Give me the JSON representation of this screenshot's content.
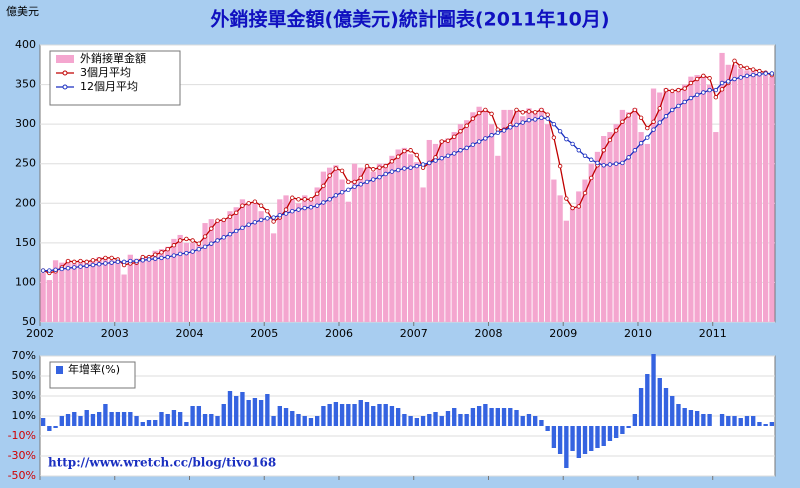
{
  "chart_data": [
    {
      "type": "bar",
      "title": "外銷接單金額(億美元)統計圖表(2011年10月)",
      "y_label": "億美元",
      "categories": [
        "2002",
        null,
        null,
        null,
        null,
        null,
        null,
        null,
        null,
        null,
        null,
        null,
        "2003",
        null,
        null,
        null,
        null,
        null,
        null,
        null,
        null,
        null,
        null,
        null,
        "2004",
        null,
        null,
        null,
        null,
        null,
        null,
        null,
        null,
        null,
        null,
        null,
        "2005",
        null,
        null,
        null,
        null,
        null,
        null,
        null,
        null,
        null,
        null,
        null,
        "2006",
        null,
        null,
        null,
        null,
        null,
        null,
        null,
        null,
        null,
        null,
        null,
        "2007",
        null,
        null,
        null,
        null,
        null,
        null,
        null,
        null,
        null,
        null,
        null,
        "2008",
        null,
        null,
        null,
        null,
        null,
        null,
        null,
        null,
        null,
        null,
        null,
        "2009",
        null,
        null,
        null,
        null,
        null,
        null,
        null,
        null,
        null,
        null,
        null,
        "2010",
        null,
        null,
        null,
        null,
        null,
        null,
        null,
        null,
        null,
        null,
        null,
        "2011",
        null,
        null,
        null,
        null,
        null,
        null,
        null,
        null,
        null
      ],
      "series": [
        {
          "name": "外銷接單金額",
          "type": "bar",
          "color": "#f4a6cf",
          "values": [
            112,
            103,
            128,
            125,
            128,
            124,
            128,
            127,
            129,
            132,
            132,
            128,
            128,
            110,
            135,
            130,
            132,
            133,
            140,
            142,
            145,
            155,
            160,
            150,
            150,
            148,
            175,
            180,
            178,
            180,
            190,
            195,
            205,
            200,
            200,
            190,
            180,
            162,
            205,
            210,
            205,
            200,
            210,
            205,
            220,
            240,
            245,
            248,
            230,
            202,
            250,
            245,
            245,
            240,
            250,
            250,
            260,
            268,
            270,
            262,
            252,
            220,
            280,
            275,
            280,
            282,
            290,
            300,
            305,
            315,
            322,
            318,
            300,
            260,
            318,
            318,
            318,
            310,
            320,
            315,
            320,
            300,
            230,
            210,
            178,
            195,
            215,
            230,
            250,
            265,
            285,
            290,
            300,
            318,
            315,
            320,
            290,
            275,
            345,
            340,
            345,
            340,
            345,
            350,
            360,
            362,
            362,
            350,
            290,
            390,
            375,
            375,
            370,
            368,
            368,
            365,
            362,
            360
          ]
        },
        {
          "name": "3個月平均",
          "type": "line",
          "color": "#c00000",
          "values": [
            115,
            112,
            114,
            119,
            127,
            126,
            127,
            126,
            128,
            129,
            131,
            131,
            129,
            122,
            124,
            125,
            132,
            132,
            135,
            138,
            142,
            147,
            153,
            155,
            153,
            149,
            158,
            168,
            178,
            179,
            183,
            188,
            197,
            200,
            202,
            197,
            190,
            177,
            182,
            192,
            207,
            205,
            205,
            205,
            212,
            222,
            235,
            244,
            241,
            227,
            227,
            232,
            247,
            243,
            245,
            247,
            253,
            259,
            266,
            267,
            261,
            245,
            251,
            258,
            278,
            279,
            284,
            291,
            298,
            307,
            314,
            318,
            313,
            293,
            293,
            299,
            318,
            315,
            316,
            315,
            318,
            312,
            283,
            247,
            206,
            194,
            196,
            213,
            232,
            248,
            267,
            280,
            292,
            303,
            311,
            318,
            308,
            295,
            303,
            320,
            343,
            342,
            343,
            345,
            352,
            357,
            361,
            358,
            334,
            344,
            352,
            380,
            373,
            371,
            369,
            367,
            365,
            362
          ]
        },
        {
          "name": "12個月平均",
          "type": "line",
          "color": "#1a2fc0",
          "values": [
            115,
            115,
            116,
            117,
            118,
            119,
            120,
            121,
            122,
            123,
            124,
            125,
            126,
            126,
            127,
            127,
            128,
            129,
            130,
            131,
            132,
            134,
            136,
            137,
            139,
            142,
            145,
            149,
            153,
            157,
            161,
            165,
            169,
            173,
            176,
            179,
            181,
            182,
            185,
            187,
            190,
            192,
            194,
            195,
            197,
            201,
            205,
            210,
            214,
            217,
            221,
            224,
            227,
            230,
            233,
            237,
            240,
            242,
            244,
            245,
            247,
            249,
            251,
            254,
            257,
            260,
            263,
            267,
            270,
            274,
            278,
            282,
            286,
            289,
            292,
            296,
            299,
            302,
            305,
            306,
            308,
            307,
            300,
            291,
            281,
            275,
            267,
            260,
            255,
            251,
            248,
            249,
            250,
            251,
            258,
            267,
            276,
            283,
            293,
            302,
            310,
            318,
            323,
            328,
            333,
            337,
            340,
            343,
            343,
            352,
            354,
            357,
            359,
            361,
            362,
            363,
            364,
            364
          ]
        }
      ],
      "ylim": [
        50,
        400
      ],
      "yticks": [
        50,
        100,
        150,
        200,
        250,
        300,
        350,
        400
      ],
      "grid": true,
      "legend": "upper left"
    },
    {
      "type": "bar",
      "categories": [
        "2002",
        null,
        null,
        null,
        null,
        null,
        null,
        null,
        null,
        null,
        null,
        null,
        "2003",
        null,
        null,
        null,
        null,
        null,
        null,
        null,
        null,
        null,
        null,
        null,
        "2004",
        null,
        null,
        null,
        null,
        null,
        null,
        null,
        null,
        null,
        null,
        null,
        "2005",
        null,
        null,
        null,
        null,
        null,
        null,
        null,
        null,
        null,
        null,
        null,
        "2006",
        null,
        null,
        null,
        null,
        null,
        null,
        null,
        null,
        null,
        null,
        null,
        "2007",
        null,
        null,
        null,
        null,
        null,
        null,
        null,
        null,
        null,
        null,
        null,
        "2008",
        null,
        null,
        null,
        null,
        null,
        null,
        null,
        null,
        null,
        null,
        null,
        "2009",
        null,
        null,
        null,
        null,
        null,
        null,
        null,
        null,
        null,
        null,
        null,
        "2010",
        null,
        null,
        null,
        null,
        null,
        null,
        null,
        null,
        null,
        null,
        null,
        "2011",
        null,
        null,
        null,
        null,
        null,
        null,
        null,
        null,
        null
      ],
      "series": [
        {
          "name": "年增率(%)",
          "type": "bar",
          "color": "#3563e0",
          "values": [
            8,
            -5,
            -2,
            10,
            12,
            14,
            10,
            16,
            12,
            14,
            22,
            14,
            14,
            14,
            14,
            10,
            4,
            6,
            6,
            14,
            12,
            16,
            14,
            4,
            20,
            20,
            12,
            12,
            10,
            22,
            35,
            30,
            34,
            26,
            28,
            26,
            32,
            10,
            20,
            18,
            15,
            12,
            10,
            8,
            10,
            20,
            22,
            24,
            22,
            22,
            22,
            26,
            24,
            20,
            22,
            22,
            20,
            18,
            12,
            10,
            8,
            10,
            12,
            14,
            10,
            15,
            18,
            12,
            12,
            18,
            20,
            22,
            18,
            18,
            18,
            18,
            16,
            10,
            12,
            10,
            6,
            -5,
            -22,
            -28,
            -42,
            -25,
            -32,
            -28,
            -25,
            -22,
            -20,
            -15,
            -12,
            -8,
            -2,
            12,
            38,
            52,
            72,
            48,
            38,
            30,
            22,
            18,
            16,
            15,
            12,
            12,
            0,
            12,
            10,
            10,
            8,
            10,
            10,
            4,
            2,
            4
          ]
        }
      ],
      "ylim": [
        -50,
        70
      ],
      "yticks": [
        {
          "value": -50,
          "label": "-50%"
        },
        {
          "value": -30,
          "label": "-30%"
        },
        {
          "value": -10,
          "label": "-10%"
        },
        {
          "value": 10,
          "label": "10%"
        },
        {
          "value": 30,
          "label": "30%"
        },
        {
          "value": 50,
          "label": "50%"
        },
        {
          "value": 70,
          "label": "70%"
        }
      ],
      "grid": true,
      "legend": "upper left",
      "annotation": "http://www.wretch.cc/blog/tivo168"
    }
  ]
}
